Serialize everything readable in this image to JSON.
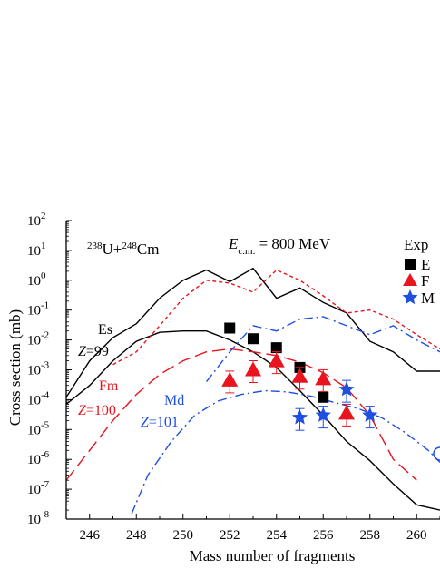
{
  "chart_data": {
    "type": "line",
    "title": "",
    "xlabel": "Mass number of fragments",
    "ylabel": "Cross section (mb)",
    "xlim": [
      245,
      261
    ],
    "ylim_log10": [
      -8,
      2
    ],
    "log_y": true,
    "grid": false,
    "x_ticks": [
      "246",
      "248",
      "250",
      "252",
      "254",
      "256",
      "258",
      "260"
    ],
    "y_tick_base": "10",
    "y_tick_exponents": [
      "2",
      "1",
      "0",
      "-1",
      "-2",
      "-3",
      "-4",
      "-5",
      "-6",
      "-7",
      "-8"
    ],
    "reaction": {
      "mass1": "238",
      "sym1": "U+",
      "mass2": "248",
      "sym2": "Cm"
    },
    "energy": {
      "symbol": "E",
      "sub": "c.m.",
      "rest": " = 800 MeV"
    },
    "legend_title": "Exp",
    "legend_partial_labels": [
      "E",
      "F",
      "M"
    ],
    "series_labels": [
      {
        "name": "Es",
        "z": "Z",
        "zval": "=99",
        "color": "#000000"
      },
      {
        "name": "Fm",
        "z": "Z",
        "zval": "=100",
        "color": "#e8151e"
      },
      {
        "name": "Md",
        "z": "Z",
        "zval": "=101",
        "color": "#1f4fe0"
      }
    ],
    "series": [
      {
        "id": "es-solid-upper",
        "group": "Es",
        "style": "solid",
        "color": "#000000",
        "x": [
          245,
          246,
          247,
          248,
          249,
          250,
          251,
          252,
          253,
          254,
          255,
          256,
          257,
          258,
          259,
          260,
          261
        ],
        "y": [
          0.00012,
          0.002,
          0.012,
          0.035,
          0.25,
          1.0,
          2.2,
          0.9,
          2.5,
          0.25,
          0.55,
          0.18,
          0.08,
          0.009,
          0.004,
          0.0009,
          0.0009
        ]
      },
      {
        "id": "es-solid-lower",
        "group": "Es",
        "style": "solid",
        "color": "#000000",
        "x": [
          245,
          246,
          247,
          248,
          249,
          250,
          251,
          252,
          253,
          254,
          255,
          256,
          257,
          258,
          259,
          260,
          261
        ],
        "y": [
          7e-05,
          0.0003,
          0.002,
          0.009,
          0.018,
          0.02,
          0.02,
          0.01,
          0.004,
          0.0012,
          0.0002,
          3e-05,
          4e-06,
          9e-07,
          1.5e-07,
          3e-08,
          2e-08
        ]
      },
      {
        "id": "fm-dash-upper",
        "group": "Fm",
        "style": "shortdash",
        "color": "#e8151e",
        "x": [
          247,
          248,
          249,
          250,
          251,
          252,
          253,
          254,
          255,
          256,
          257,
          258,
          259,
          260,
          261
        ],
        "y": [
          0.0015,
          0.004,
          0.03,
          0.25,
          1.0,
          0.8,
          0.4,
          2.2,
          1.0,
          0.3,
          0.08,
          0.1,
          0.05,
          0.015,
          0.005
        ]
      },
      {
        "id": "fm-dash-lower",
        "group": "Fm",
        "style": "longdash",
        "color": "#e8151e",
        "x": [
          245,
          246,
          247,
          248,
          249,
          250,
          251,
          252,
          253,
          254,
          255,
          256,
          257,
          258,
          259,
          260
        ],
        "y": [
          2e-07,
          2e-06,
          2e-05,
          0.00015,
          0.0007,
          0.002,
          0.004,
          0.005,
          0.004,
          0.003,
          0.0018,
          0.0008,
          0.00025,
          3e-05,
          1e-06,
          2e-07
        ]
      },
      {
        "id": "md-dashdot-upper",
        "group": "Md",
        "style": "dashdot",
        "color": "#1f4fe0",
        "x": [
          251,
          252,
          253,
          254,
          255,
          256,
          257,
          258,
          259,
          260,
          261
        ],
        "y": [
          0.0004,
          0.004,
          0.03,
          0.02,
          0.05,
          0.06,
          0.03,
          0.015,
          0.03,
          0.01,
          0.004
        ]
      },
      {
        "id": "md-dashdot-lower",
        "group": "Md",
        "style": "dashdot",
        "color": "#1f4fe0",
        "x": [
          247.8,
          248.5,
          249.5,
          250.5,
          251.5,
          252.5,
          253.5,
          254.5,
          255.5,
          256.5,
          257.5,
          258.5,
          259.5,
          260.5,
          261
        ],
        "y": [
          1.5e-08,
          3e-07,
          4e-06,
          3e-05,
          9e-05,
          0.00015,
          0.0002,
          0.00018,
          0.00013,
          8e-05,
          5e-05,
          2.5e-05,
          8e-06,
          2e-06,
          8e-07
        ]
      }
    ],
    "experimental": [
      {
        "name": "Es exp",
        "marker": "square",
        "color": "#000000",
        "points": [
          {
            "x": 252,
            "y": 0.025
          },
          {
            "x": 253,
            "y": 0.011
          },
          {
            "x": 254,
            "y": 0.0055
          },
          {
            "x": 255,
            "y": 0.0012
          },
          {
            "x": 256,
            "y": 0.00012
          }
        ]
      },
      {
        "name": "Fm exp",
        "marker": "triangle",
        "color": "#e8151e",
        "points": [
          {
            "x": 252,
            "y": 0.00045
          },
          {
            "x": 253,
            "y": 0.001
          },
          {
            "x": 254,
            "y": 0.002
          },
          {
            "x": 255,
            "y": 0.0006
          },
          {
            "x": 256,
            "y": 0.0005
          },
          {
            "x": 257,
            "y": 3.5e-05
          }
        ]
      },
      {
        "name": "Md exp",
        "marker": "star",
        "color": "#1f4fe0",
        "points": [
          {
            "x": 255,
            "y": 2.5e-05
          },
          {
            "x": 256,
            "y": 3e-05
          },
          {
            "x": 257,
            "y": 0.00022
          },
          {
            "x": 258,
            "y": 3e-05
          }
        ]
      }
    ]
  }
}
